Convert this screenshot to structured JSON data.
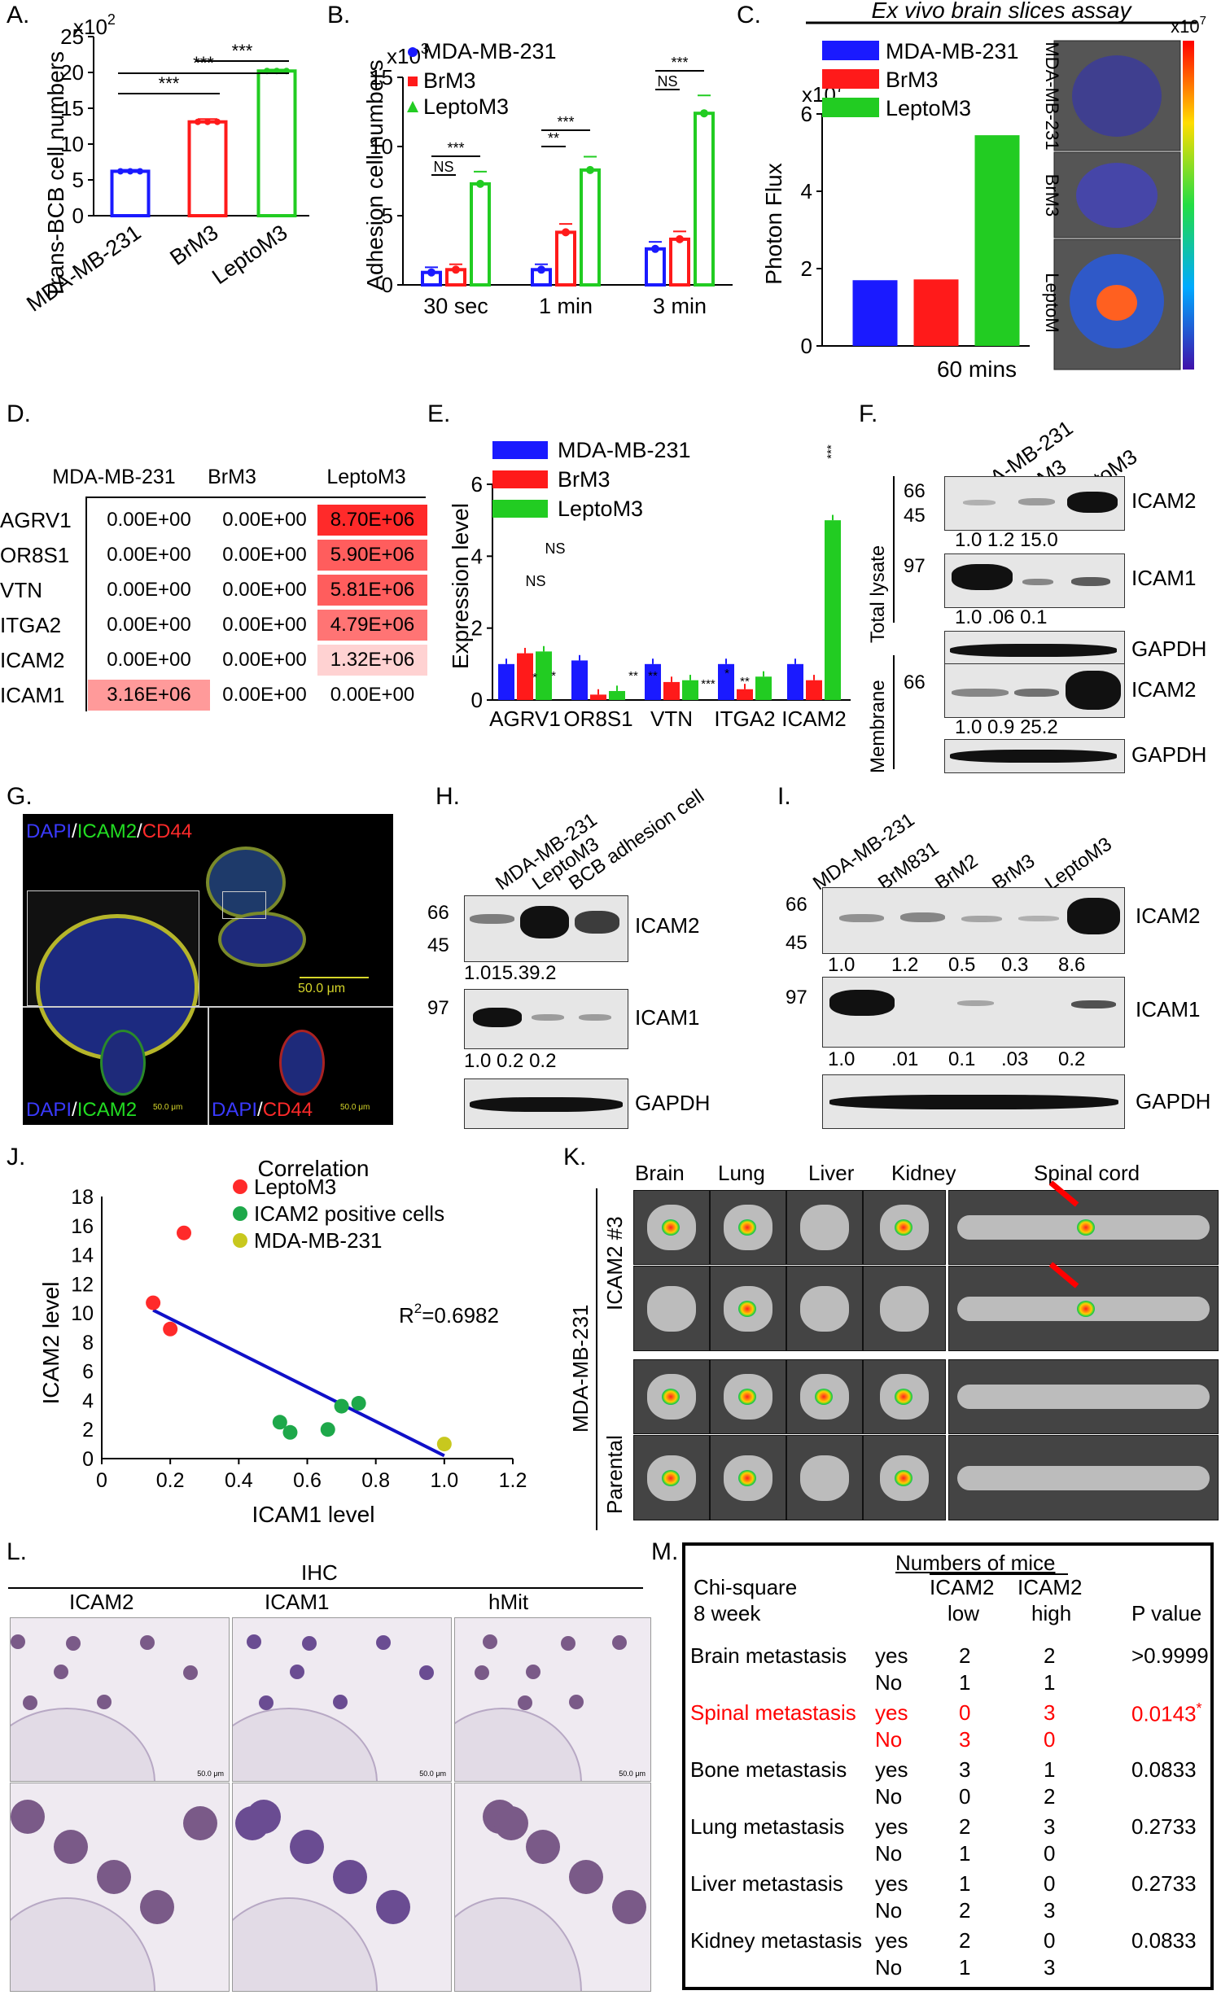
{
  "panel_letters": {
    "A": "A.",
    "B": "B.",
    "C": "C.",
    "D": "D.",
    "E": "E.",
    "F": "F.",
    "G": "G.",
    "H": "H.",
    "I": "I.",
    "J": "J.",
    "K": "K.",
    "L": "L.",
    "M": "M."
  },
  "colors": {
    "blue": "#1a1aff",
    "red": "#ff1a1a",
    "green": "#22cc22",
    "olive": "#c8c81e",
    "heat_dark": "#ff2a2a",
    "heat_mid": "#ff6666",
    "heat_light": "#ffcccc",
    "regline": "#1010c8",
    "sig_red": "#ff0000"
  },
  "chart_data": [
    {
      "id": "A",
      "type": "bar",
      "ylabel": "Trans-BCB cell numbers",
      "yexp": "x10",
      "yexp_sup": "2",
      "categories": [
        "MDA-MB-231",
        "BrM3",
        "LeptoM3"
      ],
      "values": [
        6.2,
        13.1,
        20.2
      ],
      "errors": [
        0.2,
        0.4,
        0.2
      ],
      "ylim": [
        0,
        25
      ],
      "yticks": [
        "0",
        "5",
        "10",
        "15",
        "20",
        "25"
      ],
      "significance": [
        "***",
        "***",
        "***"
      ]
    },
    {
      "id": "B",
      "type": "bar",
      "ylabel": "Adhesion cell numbers",
      "yexp": "x10",
      "yexp_sup": "3",
      "groups": [
        "30 sec",
        "1 min",
        "3 min"
      ],
      "series": [
        {
          "name": "MDA-MB-231",
          "values": [
            0.9,
            1.1,
            2.6
          ]
        },
        {
          "name": "BrM3",
          "values": [
            1.1,
            3.8,
            3.3
          ]
        },
        {
          "name": "LeptoM3",
          "values": [
            7.3,
            8.3,
            12.4
          ]
        }
      ],
      "ylim": [
        0,
        15
      ],
      "yticks": [
        "0",
        "5",
        "10",
        "15"
      ],
      "significance": [
        "NS",
        "***",
        "**",
        "***",
        "NS",
        "***"
      ]
    },
    {
      "id": "C",
      "type": "bar",
      "title": "Ex vivo brain slices assay",
      "ylabel": "Photon Flux",
      "yexp": "x10",
      "yexp_sup": "7",
      "xlabel": "60 mins",
      "categories": [
        "MDA-MB-231",
        "BrM3",
        "LeptoM3"
      ],
      "values": [
        1.7,
        1.72,
        5.45
      ],
      "ylim": [
        0,
        6
      ],
      "yticks": [
        "0",
        "2",
        "4",
        "6"
      ],
      "image_row_labels": [
        "MDA-MB-231",
        "BrM3",
        "LeptoM"
      ],
      "colorbar_exp": "x10",
      "colorbar_exp_sup": "7"
    },
    {
      "id": "E",
      "type": "bar",
      "ylabel": "Expression level",
      "groups": [
        "AGRV1",
        "OR8S1",
        "VTN",
        "ITGA2",
        "ICAM2"
      ],
      "series": [
        {
          "name": "MDA-MB-231",
          "values": [
            1.0,
            1.1,
            1.0,
            1.0,
            1.0
          ]
        },
        {
          "name": "BrM3",
          "values": [
            1.3,
            0.15,
            0.5,
            0.3,
            0.55
          ]
        },
        {
          "name": "LeptoM3",
          "values": [
            1.35,
            0.25,
            0.55,
            0.65,
            5.0
          ]
        }
      ],
      "ylim": [
        0,
        6
      ],
      "yticks": [
        "0",
        "2",
        "4",
        "6"
      ],
      "annotations": [
        "NS",
        "NS",
        "*",
        "*",
        "**",
        "**",
        "***",
        "*",
        "**",
        "***"
      ]
    },
    {
      "id": "J",
      "type": "scatter",
      "title": "Correlation",
      "xlabel": "ICAM1 level",
      "ylabel": "ICAM2 level",
      "xlim": [
        0,
        1.2
      ],
      "ylim": [
        0,
        18
      ],
      "xticks": [
        "0",
        "0.2",
        "0.4",
        "0.6",
        "0.8",
        "1.0",
        "1.2"
      ],
      "yticks": [
        "0",
        "2",
        "4",
        "6",
        "8",
        "10",
        "12",
        "14",
        "16",
        "18"
      ],
      "r2": "R",
      "r2_sup": "2",
      "r2_value": "=0.6982",
      "series": [
        {
          "name": "LeptoM3",
          "points": [
            [
              0.15,
              10.7
            ],
            [
              0.2,
              8.9
            ],
            [
              0.24,
              15.5
            ]
          ]
        },
        {
          "name": "ICAM2 positive cells",
          "points": [
            [
              0.52,
              2.5
            ],
            [
              0.55,
              1.8
            ],
            [
              0.66,
              2.0
            ],
            [
              0.7,
              3.6
            ],
            [
              0.75,
              3.8
            ]
          ]
        },
        {
          "name": "MDA-MB-231",
          "points": [
            [
              1.0,
              1.0
            ]
          ]
        }
      ],
      "fit": [
        [
          0.15,
          10.2
        ],
        [
          1.0,
          0.2
        ]
      ]
    }
  ],
  "panelD": {
    "headers": [
      "MDA-MB-231",
      "BrM3",
      "LeptoM3"
    ],
    "rows": [
      {
        "gene": "AGRV1",
        "vals": [
          "0.00E+00",
          "0.00E+00",
          "8.70E+06"
        ],
        "hi": 2,
        "shade": "dark"
      },
      {
        "gene": "OR8S1",
        "vals": [
          "0.00E+00",
          "0.00E+00",
          "5.90E+06"
        ],
        "hi": 2,
        "shade": "mid"
      },
      {
        "gene": "VTN",
        "vals": [
          "0.00E+00",
          "0.00E+00",
          "5.81E+06"
        ],
        "hi": 2,
        "shade": "mid"
      },
      {
        "gene": "ITGA2",
        "vals": [
          "0.00E+00",
          "0.00E+00",
          "4.79E+06"
        ],
        "hi": 2,
        "shade": "mid2"
      },
      {
        "gene": "ICAM2",
        "vals": [
          "0.00E+00",
          "0.00E+00",
          "1.32E+06"
        ],
        "hi": 2,
        "shade": "light"
      },
      {
        "gene": "ICAM1",
        "vals": [
          "3.16E+06",
          "0.00E+00",
          "0.00E+00"
        ],
        "hi": 0,
        "shade": "mid3"
      }
    ]
  },
  "panelF": {
    "lanes": [
      "MDA-MB-231",
      "BrM3",
      "LeptoM3"
    ],
    "side_total": "Total lysate",
    "side_membrane": "Membrane",
    "mw": [
      "66",
      "45",
      "97",
      "66"
    ],
    "targets": [
      "ICAM2",
      "ICAM1",
      "GAPDH",
      "ICAM2",
      "GAPDH"
    ],
    "q1": "1.0  1.2  15.0",
    "q2": "1.0  .06  0.1",
    "q3": "1.0   0.9  25.2"
  },
  "panelG": {
    "dapi": "DAPI",
    "slash": "/",
    "icam2": "ICAM2",
    "cd44": "CD44",
    "scale": "50.0 μm",
    "scale_small": "50.0 μm"
  },
  "panelH": {
    "lanes": [
      "MDA-MB-231",
      "LeptoM3",
      "BCB adhesion cell"
    ],
    "mw": [
      "66",
      "45",
      "97"
    ],
    "targets": [
      "ICAM2",
      "ICAM1",
      "GAPDH"
    ],
    "q1": "1.015.39.2",
    "q2": "1.0  0.2  0.2"
  },
  "panelI": {
    "lanes": [
      "MDA-MB-231",
      "BrM831",
      "BrM2",
      "BrM3",
      "LeptoM3"
    ],
    "mw": [
      "66",
      "45",
      "97"
    ],
    "targets": [
      "ICAM2",
      "ICAM1",
      "GAPDH"
    ],
    "q1": [
      "1.0",
      "1.2",
      "0.5",
      "0.3",
      "8.6"
    ],
    "q2": [
      "1.0",
      ".01",
      "0.1",
      ".03",
      "0.2"
    ]
  },
  "panelK": {
    "columns": [
      "Brain",
      "Lung",
      "Liver",
      "Kidney",
      "Spinal cord"
    ],
    "row_main": "MDA-MB-231",
    "row_icam": "ICAM2 #3",
    "row_parental": "Parental"
  },
  "panelL": {
    "title": "IHC",
    "columns": [
      "ICAM2",
      "ICAM1",
      "hMit"
    ],
    "scale": "50.0 μm"
  },
  "panelM": {
    "header": "Numbers of mice",
    "test": "Chi-square",
    "time": "8 week",
    "col_low_1": "ICAM2",
    "col_low_2": "low",
    "col_high_1": "ICAM2",
    "col_high_2": "high",
    "pcol": "P value",
    "rows": [
      {
        "site": "Brain metastasis",
        "yes": [
          "yes",
          "2",
          "2"
        ],
        "no": [
          "No",
          "1",
          "1"
        ],
        "p": ">0.9999",
        "red": false,
        "star": ""
      },
      {
        "site": "Spinal metastasis",
        "yes": [
          "yes",
          "0",
          "3"
        ],
        "no": [
          "No",
          "3",
          "0"
        ],
        "p": "0.0143",
        "red": true,
        "star": "*"
      },
      {
        "site": "Bone metastasis",
        "yes": [
          "yes",
          "3",
          "1"
        ],
        "no": [
          "No",
          "0",
          "2"
        ],
        "p": "0.0833",
        "red": false,
        "star": ""
      },
      {
        "site": "Lung metastasis",
        "yes": [
          "yes",
          "2",
          "3"
        ],
        "no": [
          "No",
          "1",
          "0"
        ],
        "p": "0.2733",
        "red": false,
        "star": ""
      },
      {
        "site": "Liver metastasis",
        "yes": [
          "yes",
          "1",
          "0"
        ],
        "no": [
          "No",
          "2",
          "3"
        ],
        "p": "0.2733",
        "red": false,
        "star": ""
      },
      {
        "site": "Kidney metastasis",
        "yes": [
          "yes",
          "2",
          "0"
        ],
        "no": [
          "No",
          "1",
          "3"
        ],
        "p": "0.0833",
        "red": false,
        "star": ""
      }
    ]
  }
}
